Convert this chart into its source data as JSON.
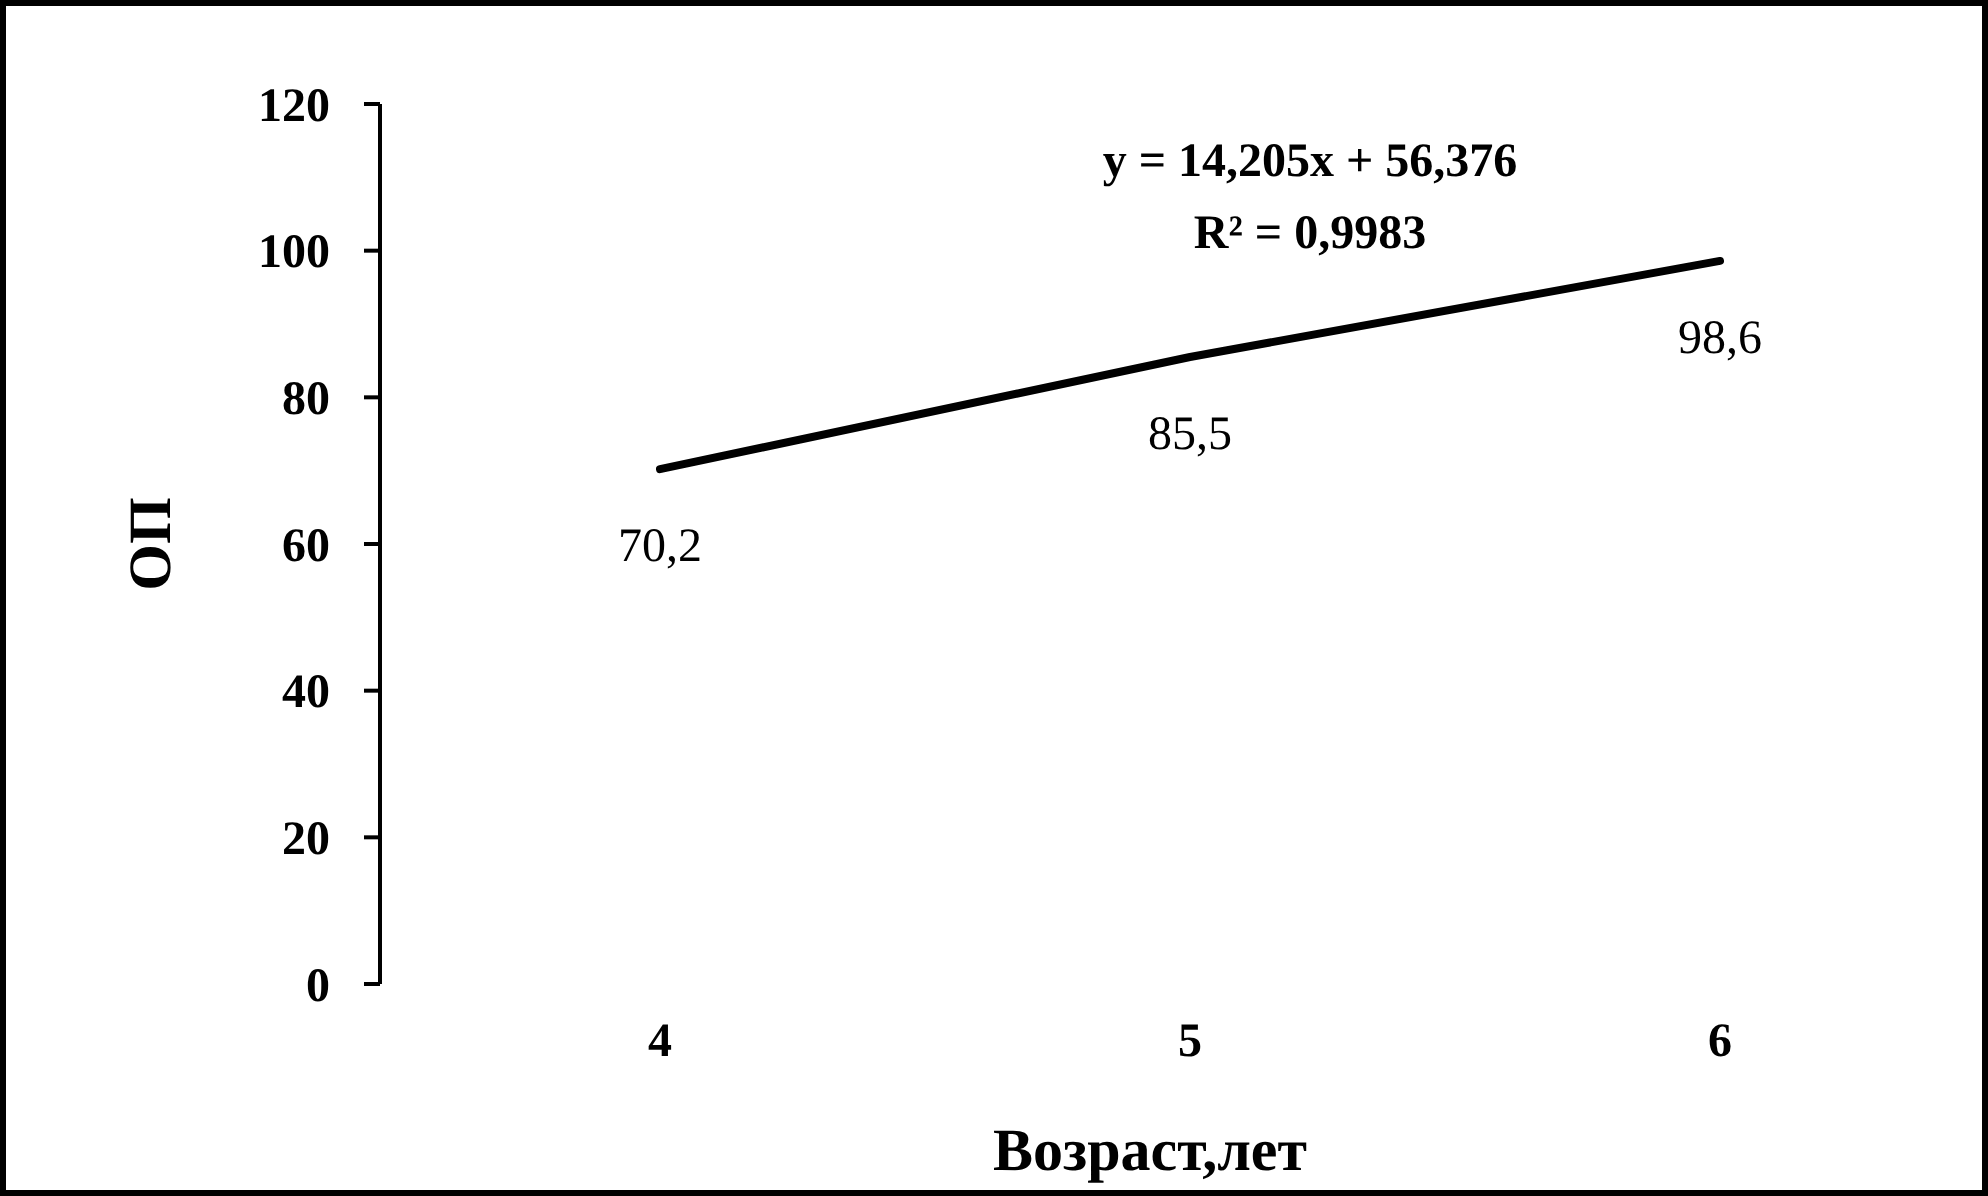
{
  "chart_data": {
    "type": "line",
    "xlabel": "Возраст,лет",
    "ylabel": "ОП",
    "categories": [
      "4",
      "5",
      "6"
    ],
    "series": [
      {
        "color": "#000000",
        "values": [
          70.2,
          85.5,
          98.6
        ],
        "value_labels": [
          "70,2",
          "85,5",
          "98,6"
        ]
      }
    ],
    "ylim": [
      0,
      120
    ],
    "yticks": [
      0,
      20,
      40,
      60,
      80,
      100,
      120
    ],
    "marker": "none",
    "annotations": [
      "y = 14,205x + 56,376",
      "R² = 0,9983"
    ]
  }
}
